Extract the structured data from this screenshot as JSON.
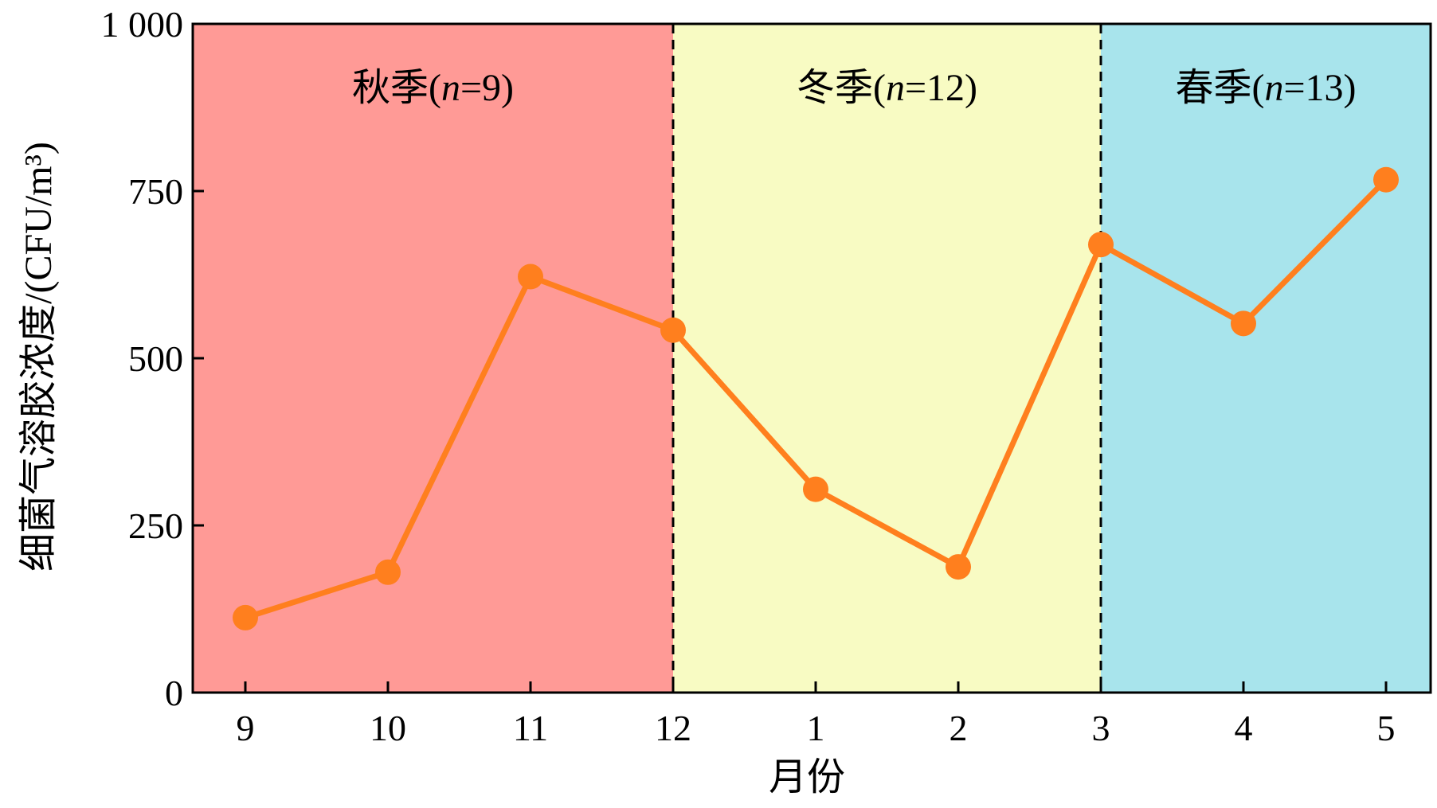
{
  "chart_data": {
    "type": "line",
    "xlabel": "月份",
    "ylabel": "细菌气溶胶浓度/(CFU/m³)",
    "ylim": [
      0,
      1000
    ],
    "yticks": [
      {
        "value": 0,
        "label": "0"
      },
      {
        "value": 250,
        "label": "250"
      },
      {
        "value": 500,
        "label": "500"
      },
      {
        "value": 750,
        "label": "750"
      },
      {
        "value": 1000,
        "label": "1 000"
      }
    ],
    "categories": [
      "9",
      "10",
      "11",
      "12",
      "1",
      "2",
      "3",
      "4",
      "5"
    ],
    "series": [
      {
        "values": [
          112,
          180,
          622,
          542,
          304,
          188,
          670,
          552,
          767
        ],
        "color": "#FF7F1E"
      }
    ],
    "regions": [
      {
        "label": "秋季",
        "n_label": "n",
        "n_value": "=9",
        "from_index": -0.37,
        "to_index": 3,
        "color": "#FF9A96"
      },
      {
        "label": "冬季",
        "n_label": "n",
        "n_value": "=12",
        "from_index": 3,
        "to_index": 6,
        "color": "#F8FBC3"
      },
      {
        "label": "春季",
        "n_label": "n",
        "n_value": "=13",
        "from_index": 6,
        "to_index": 8.4,
        "color": "#A8E4EC"
      }
    ],
    "dividers": [
      3,
      6
    ],
    "grid": false,
    "legend": "none"
  }
}
